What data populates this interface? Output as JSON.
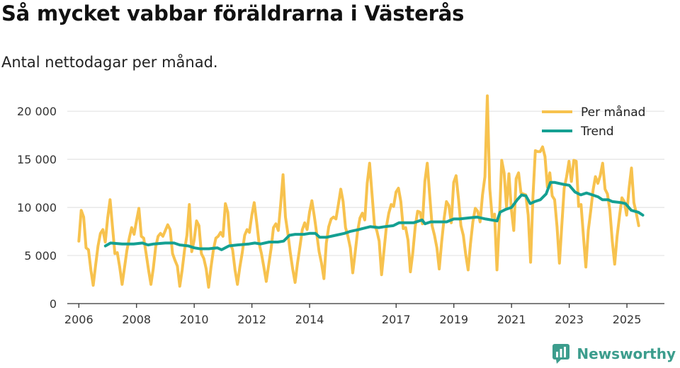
{
  "title": "Så mycket vabbar föräldrarna i Västerås",
  "subtitle": "Antal nettodagar per månad.",
  "brand": "Newsworthy",
  "colors": {
    "per_manad": "#f7c24e",
    "trend": "#14a092",
    "grid": "#e3e3e3",
    "axis": "#333333",
    "brand": "#3c9d8d"
  },
  "chart_data": {
    "type": "line",
    "title": "Så mycket vabbar föräldrarna i Västerås",
    "subtitle": "Antal nettodagar per månad.",
    "xlabel": "",
    "ylabel": "",
    "xlim": [
      2005.6,
      2026.3
    ],
    "ylim": [
      0,
      22000
    ],
    "yticks": [
      0,
      5000,
      10000,
      15000,
      20000
    ],
    "ytick_labels": [
      "0",
      "5 000",
      "10 000",
      "15 000",
      "20 000"
    ],
    "xticks": [
      2006,
      2008,
      2010,
      2012,
      2014,
      2017,
      2019,
      2021,
      2023,
      2025
    ],
    "xtick_labels": [
      "2006",
      "2008",
      "2010",
      "2012",
      "2014",
      "2017",
      "2019",
      "2021",
      "2023",
      "2025"
    ],
    "legend_position": "top-right",
    "series": [
      {
        "name": "Per månad",
        "color": "#f7c24e",
        "x_start": 2006.0,
        "step": 0.0833,
        "values": [
          6500,
          9700,
          9000,
          5800,
          5600,
          3500,
          1900,
          4000,
          6000,
          7300,
          7700,
          6400,
          8900,
          10800,
          8000,
          5200,
          5300,
          3800,
          2000,
          3700,
          5500,
          6800,
          7900,
          7200,
          8600,
          9900,
          7000,
          6800,
          5200,
          3500,
          2000,
          3700,
          5900,
          7000,
          7300,
          7000,
          7600,
          8200,
          7700,
          5200,
          4500,
          3900,
          1800,
          3500,
          5600,
          7100,
          10300,
          5400,
          6600,
          8600,
          8100,
          5200,
          4700,
          3600,
          1700,
          3800,
          5600,
          6800,
          7000,
          7400,
          7000,
          10400,
          9500,
          6300,
          5600,
          3500,
          2000,
          3800,
          5300,
          7100,
          7700,
          7400,
          9200,
          10500,
          8500,
          6300,
          5200,
          3800,
          2300,
          4000,
          5700,
          7900,
          8300,
          7600,
          10300,
          13400,
          9000,
          7300,
          5300,
          3600,
          2200,
          4200,
          5900,
          7700,
          8400,
          7700,
          9500,
          10700,
          9100,
          7300,
          5400,
          4200,
          2600,
          6300,
          8000,
          8800,
          9000,
          8800,
          10300,
          11900,
          10600,
          7900,
          7000,
          5800,
          3200,
          5300,
          7500,
          8900,
          9400,
          8700,
          12500,
          14600,
          11400,
          8200,
          7600,
          6500,
          3000,
          5500,
          8000,
          9400,
          10300,
          10100,
          11600,
          12000,
          10600,
          7800,
          7900,
          6600,
          3300,
          5300,
          8000,
          9600,
          9500,
          8300,
          12700,
          14600,
          11300,
          8100,
          7100,
          5800,
          3600,
          6400,
          8800,
          10600,
          10200,
          8400,
          12600,
          13300,
          10900,
          8100,
          7100,
          5100,
          3500,
          6200,
          8500,
          9900,
          9600,
          8500,
          11300,
          13200,
          21600,
          12000,
          9000,
          9300,
          3500,
          8700,
          14900,
          13600,
          10000,
          13500,
          9800,
          7600,
          13000,
          13600,
          11500,
          11400,
          11300,
          9200,
          4300,
          11100,
          15900,
          15800,
          15800,
          16300,
          15300,
          12100,
          13600,
          11200,
          10800,
          8000,
          4200,
          8200,
          12000,
          13200,
          14800,
          12700,
          14900,
          14800,
          10100,
          10300,
          7000,
          3800,
          7600,
          9600,
          11800,
          13200,
          12500,
          13300,
          14600,
          11900,
          11400,
          9700,
          6500,
          4100,
          7000,
          9100,
          11000,
          10600,
          9200,
          12000,
          14100,
          10500,
          9400,
          8100
        ]
      },
      {
        "name": "Trend",
        "color": "#14a092",
        "points": [
          [
            2006.92,
            6000
          ],
          [
            2007.1,
            6300
          ],
          [
            2007.5,
            6200
          ],
          [
            2007.9,
            6200
          ],
          [
            2008.2,
            6300
          ],
          [
            2008.4,
            6100
          ],
          [
            2008.6,
            6200
          ],
          [
            2009.0,
            6300
          ],
          [
            2009.3,
            6300
          ],
          [
            2009.5,
            6100
          ],
          [
            2009.8,
            6000
          ],
          [
            2010.0,
            5800
          ],
          [
            2010.2,
            5700
          ],
          [
            2010.5,
            5700
          ],
          [
            2010.8,
            5800
          ],
          [
            2010.95,
            5600
          ],
          [
            2011.2,
            6000
          ],
          [
            2011.5,
            6100
          ],
          [
            2011.9,
            6200
          ],
          [
            2012.1,
            6300
          ],
          [
            2012.3,
            6200
          ],
          [
            2012.6,
            6400
          ],
          [
            2012.9,
            6400
          ],
          [
            2013.1,
            6500
          ],
          [
            2013.3,
            7100
          ],
          [
            2013.5,
            7200
          ],
          [
            2013.8,
            7200
          ],
          [
            2014.0,
            7300
          ],
          [
            2014.2,
            7300
          ],
          [
            2014.35,
            6900
          ],
          [
            2014.6,
            6900
          ],
          [
            2014.9,
            7100
          ],
          [
            2015.2,
            7300
          ],
          [
            2015.4,
            7500
          ],
          [
            2015.7,
            7700
          ],
          [
            2016.1,
            8000
          ],
          [
            2016.4,
            7900
          ],
          [
            2016.6,
            8000
          ],
          [
            2016.9,
            8100
          ],
          [
            2017.1,
            8400
          ],
          [
            2017.3,
            8400
          ],
          [
            2017.6,
            8400
          ],
          [
            2017.9,
            8700
          ],
          [
            2018.0,
            8300
          ],
          [
            2018.2,
            8500
          ],
          [
            2018.5,
            8500
          ],
          [
            2018.75,
            8500
          ],
          [
            2019.0,
            8800
          ],
          [
            2019.2,
            8800
          ],
          [
            2019.5,
            8900
          ],
          [
            2019.8,
            9000
          ],
          [
            2020.1,
            8800
          ],
          [
            2020.5,
            8600
          ],
          [
            2020.6,
            9500
          ],
          [
            2020.8,
            9800
          ],
          [
            2021.0,
            10000
          ],
          [
            2021.2,
            10800
          ],
          [
            2021.35,
            11300
          ],
          [
            2021.5,
            11200
          ],
          [
            2021.65,
            10400
          ],
          [
            2021.8,
            10600
          ],
          [
            2022.0,
            10800
          ],
          [
            2022.2,
            11400
          ],
          [
            2022.35,
            12600
          ],
          [
            2022.5,
            12600
          ],
          [
            2022.8,
            12400
          ],
          [
            2023.0,
            12300
          ],
          [
            2023.2,
            11600
          ],
          [
            2023.4,
            11300
          ],
          [
            2023.6,
            11500
          ],
          [
            2023.8,
            11300
          ],
          [
            2024.0,
            11100
          ],
          [
            2024.15,
            10800
          ],
          [
            2024.35,
            10800
          ],
          [
            2024.5,
            10600
          ],
          [
            2024.8,
            10500
          ],
          [
            2024.95,
            10400
          ],
          [
            2025.15,
            9700
          ],
          [
            2025.4,
            9500
          ],
          [
            2025.55,
            9200
          ]
        ]
      }
    ]
  }
}
